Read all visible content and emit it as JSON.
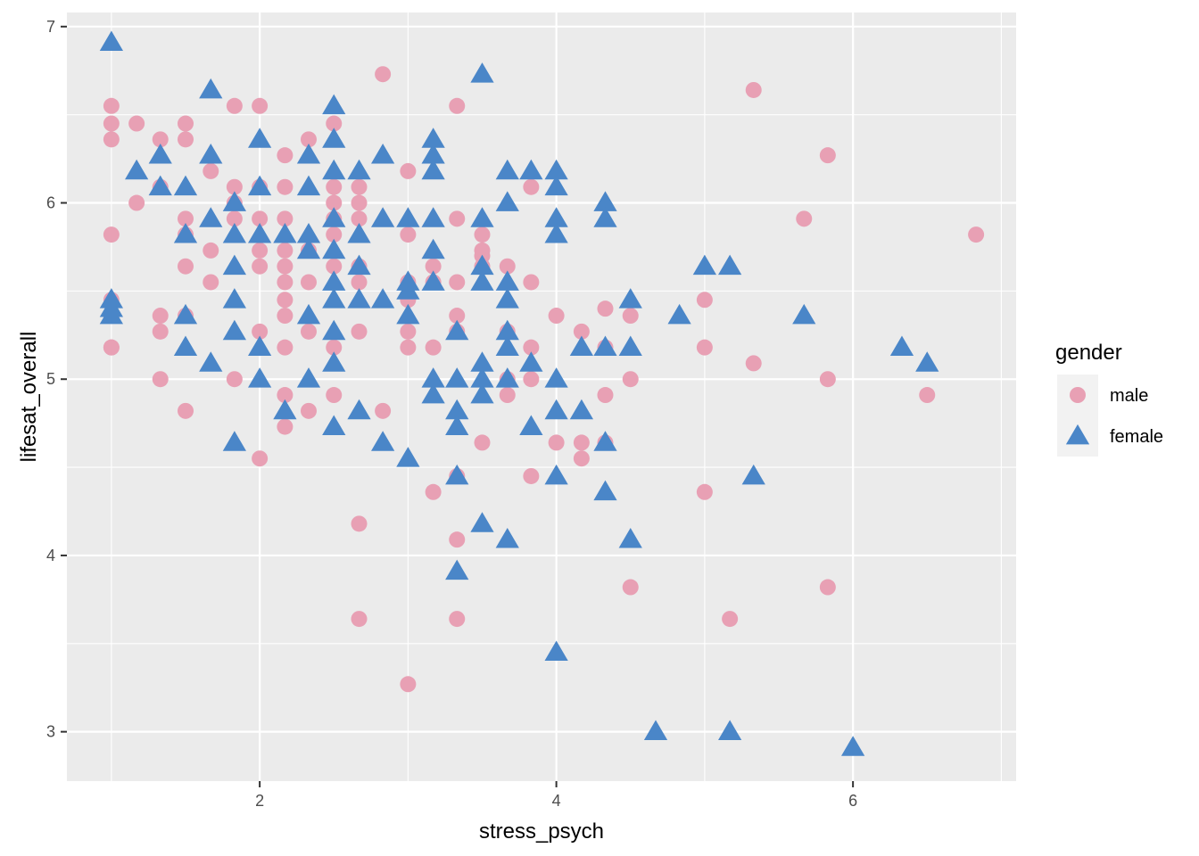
{
  "chart_data": {
    "type": "scatter",
    "title": "",
    "xlabel": "stress_psych",
    "ylabel": "lifesat_overall",
    "xlim": [
      0.7,
      7.1
    ],
    "ylim": [
      2.72,
      7.08
    ],
    "x_ticks": [
      2,
      4,
      6
    ],
    "y_ticks": [
      3,
      4,
      5,
      6,
      7
    ],
    "grid": true,
    "legend": {
      "title": "gender",
      "position": "right"
    },
    "series": [
      {
        "name": "male",
        "shape": "circle",
        "color": "#E8A0B4",
        "points": [
          [
            1.0,
            6.45
          ],
          [
            1.0,
            6.55
          ],
          [
            1.0,
            6.36
          ],
          [
            1.0,
            5.82
          ],
          [
            1.0,
            5.45
          ],
          [
            1.0,
            5.36
          ],
          [
            1.0,
            5.18
          ],
          [
            1.0,
            5.18
          ],
          [
            1.17,
            6.45
          ],
          [
            1.17,
            6.0
          ],
          [
            1.33,
            6.36
          ],
          [
            1.33,
            6.09
          ],
          [
            1.33,
            5.36
          ],
          [
            1.33,
            5.27
          ],
          [
            1.33,
            5.0
          ],
          [
            1.5,
            6.45
          ],
          [
            1.5,
            6.36
          ],
          [
            1.5,
            5.91
          ],
          [
            1.5,
            5.82
          ],
          [
            1.5,
            5.64
          ],
          [
            1.5,
            5.36
          ],
          [
            1.5,
            4.82
          ],
          [
            1.67,
            6.18
          ],
          [
            1.67,
            5.73
          ],
          [
            1.67,
            5.55
          ],
          [
            1.83,
            6.55
          ],
          [
            1.83,
            6.09
          ],
          [
            1.83,
            6.0
          ],
          [
            1.83,
            5.91
          ],
          [
            1.83,
            5.0
          ],
          [
            2.0,
            6.55
          ],
          [
            2.0,
            6.09
          ],
          [
            2.0,
            5.91
          ],
          [
            2.0,
            5.73
          ],
          [
            2.0,
            5.64
          ],
          [
            2.0,
            5.27
          ],
          [
            2.0,
            4.55
          ],
          [
            2.17,
            6.27
          ],
          [
            2.17,
            6.09
          ],
          [
            2.17,
            5.91
          ],
          [
            2.17,
            5.73
          ],
          [
            2.17,
            5.64
          ],
          [
            2.17,
            5.55
          ],
          [
            2.17,
            5.45
          ],
          [
            2.17,
            5.36
          ],
          [
            2.17,
            5.18
          ],
          [
            2.17,
            4.91
          ],
          [
            2.17,
            4.73
          ],
          [
            2.33,
            6.36
          ],
          [
            2.33,
            5.73
          ],
          [
            2.33,
            5.55
          ],
          [
            2.33,
            5.27
          ],
          [
            2.33,
            4.82
          ],
          [
            2.5,
            6.45
          ],
          [
            2.5,
            6.09
          ],
          [
            2.5,
            6.0
          ],
          [
            2.5,
            5.91
          ],
          [
            2.5,
            5.82
          ],
          [
            2.5,
            5.64
          ],
          [
            2.5,
            5.18
          ],
          [
            2.5,
            4.91
          ],
          [
            2.67,
            6.09
          ],
          [
            2.67,
            6.0
          ],
          [
            2.67,
            5.91
          ],
          [
            2.67,
            5.64
          ],
          [
            2.67,
            5.55
          ],
          [
            2.67,
            5.27
          ],
          [
            2.67,
            4.18
          ],
          [
            2.67,
            3.64
          ],
          [
            2.83,
            6.73
          ],
          [
            2.83,
            4.82
          ],
          [
            3.0,
            6.18
          ],
          [
            3.0,
            5.82
          ],
          [
            3.0,
            5.55
          ],
          [
            3.0,
            5.45
          ],
          [
            3.0,
            5.27
          ],
          [
            3.0,
            5.18
          ],
          [
            3.0,
            3.27
          ],
          [
            3.17,
            5.64
          ],
          [
            3.17,
            5.55
          ],
          [
            3.17,
            5.18
          ],
          [
            3.17,
            4.36
          ],
          [
            3.33,
            6.55
          ],
          [
            3.33,
            5.91
          ],
          [
            3.33,
            5.55
          ],
          [
            3.33,
            5.36
          ],
          [
            3.33,
            5.27
          ],
          [
            3.33,
            4.45
          ],
          [
            3.33,
            4.09
          ],
          [
            3.33,
            3.64
          ],
          [
            3.5,
            5.82
          ],
          [
            3.5,
            5.73
          ],
          [
            3.5,
            5.7
          ],
          [
            3.5,
            5.64
          ],
          [
            3.5,
            4.64
          ],
          [
            3.67,
            5.64
          ],
          [
            3.67,
            5.27
          ],
          [
            3.67,
            5.0
          ],
          [
            3.67,
            4.91
          ],
          [
            3.83,
            6.09
          ],
          [
            3.83,
            5.55
          ],
          [
            3.83,
            5.18
          ],
          [
            3.83,
            5.0
          ],
          [
            3.83,
            4.45
          ],
          [
            4.0,
            5.36
          ],
          [
            4.0,
            4.64
          ],
          [
            4.17,
            5.27
          ],
          [
            4.17,
            4.64
          ],
          [
            4.17,
            4.55
          ],
          [
            4.33,
            5.4
          ],
          [
            4.33,
            5.18
          ],
          [
            4.33,
            4.91
          ],
          [
            4.33,
            4.64
          ],
          [
            4.5,
            5.36
          ],
          [
            4.5,
            5.0
          ],
          [
            4.5,
            3.82
          ],
          [
            5.0,
            5.45
          ],
          [
            5.0,
            5.18
          ],
          [
            5.0,
            4.36
          ],
          [
            5.17,
            3.64
          ],
          [
            5.33,
            6.64
          ],
          [
            5.33,
            5.09
          ],
          [
            5.67,
            5.91
          ],
          [
            5.83,
            6.27
          ],
          [
            5.83,
            5.0
          ],
          [
            5.83,
            3.82
          ],
          [
            6.5,
            4.91
          ],
          [
            6.83,
            5.82
          ]
        ]
      },
      {
        "name": "female",
        "shape": "triangle",
        "color": "#4A86C8",
        "points": [
          [
            1.0,
            6.91
          ],
          [
            1.0,
            5.45
          ],
          [
            1.0,
            5.36
          ],
          [
            1.0,
            5.4
          ],
          [
            1.17,
            6.18
          ],
          [
            1.33,
            6.27
          ],
          [
            1.33,
            6.09
          ],
          [
            1.5,
            6.09
          ],
          [
            1.5,
            5.82
          ],
          [
            1.5,
            5.36
          ],
          [
            1.5,
            5.18
          ],
          [
            1.67,
            6.64
          ],
          [
            1.67,
            6.27
          ],
          [
            1.67,
            5.91
          ],
          [
            1.67,
            5.09
          ],
          [
            1.83,
            6.0
          ],
          [
            1.83,
            5.82
          ],
          [
            1.83,
            5.64
          ],
          [
            1.83,
            5.45
          ],
          [
            1.83,
            5.27
          ],
          [
            1.83,
            4.64
          ],
          [
            2.0,
            6.36
          ],
          [
            2.0,
            6.09
          ],
          [
            2.0,
            5.82
          ],
          [
            2.0,
            5.18
          ],
          [
            2.0,
            5.0
          ],
          [
            2.17,
            5.82
          ],
          [
            2.17,
            4.82
          ],
          [
            2.33,
            6.27
          ],
          [
            2.33,
            6.09
          ],
          [
            2.33,
            5.82
          ],
          [
            2.33,
            5.73
          ],
          [
            2.33,
            5.36
          ],
          [
            2.33,
            5.0
          ],
          [
            2.5,
            6.55
          ],
          [
            2.5,
            6.36
          ],
          [
            2.5,
            6.18
          ],
          [
            2.5,
            5.91
          ],
          [
            2.5,
            5.73
          ],
          [
            2.5,
            5.55
          ],
          [
            2.5,
            5.45
          ],
          [
            2.5,
            5.27
          ],
          [
            2.5,
            5.09
          ],
          [
            2.5,
            4.73
          ],
          [
            2.67,
            6.18
          ],
          [
            2.67,
            5.82
          ],
          [
            2.67,
            5.64
          ],
          [
            2.67,
            5.45
          ],
          [
            2.67,
            4.82
          ],
          [
            2.83,
            6.27
          ],
          [
            2.83,
            5.91
          ],
          [
            2.83,
            5.45
          ],
          [
            2.83,
            4.64
          ],
          [
            3.0,
            5.91
          ],
          [
            3.0,
            5.55
          ],
          [
            3.0,
            5.5
          ],
          [
            3.0,
            5.36
          ],
          [
            3.0,
            4.55
          ],
          [
            3.17,
            6.36
          ],
          [
            3.17,
            6.27
          ],
          [
            3.17,
            6.18
          ],
          [
            3.17,
            5.91
          ],
          [
            3.17,
            5.73
          ],
          [
            3.17,
            5.55
          ],
          [
            3.17,
            5.0
          ],
          [
            3.17,
            4.91
          ],
          [
            3.33,
            5.27
          ],
          [
            3.33,
            5.0
          ],
          [
            3.33,
            4.82
          ],
          [
            3.33,
            4.73
          ],
          [
            3.33,
            4.45
          ],
          [
            3.33,
            3.91
          ],
          [
            3.5,
            6.73
          ],
          [
            3.5,
            5.91
          ],
          [
            3.5,
            5.64
          ],
          [
            3.5,
            5.55
          ],
          [
            3.5,
            5.09
          ],
          [
            3.5,
            5.0
          ],
          [
            3.5,
            4.91
          ],
          [
            3.5,
            4.18
          ],
          [
            3.67,
            6.18
          ],
          [
            3.67,
            6.0
          ],
          [
            3.67,
            5.55
          ],
          [
            3.67,
            5.45
          ],
          [
            3.67,
            5.27
          ],
          [
            3.67,
            5.18
          ],
          [
            3.67,
            5.0
          ],
          [
            3.67,
            4.09
          ],
          [
            3.83,
            6.18
          ],
          [
            3.83,
            5.09
          ],
          [
            3.83,
            4.73
          ],
          [
            4.0,
            6.18
          ],
          [
            4.0,
            6.09
          ],
          [
            4.0,
            5.91
          ],
          [
            4.0,
            5.82
          ],
          [
            4.0,
            5.0
          ],
          [
            4.0,
            4.82
          ],
          [
            4.0,
            4.45
          ],
          [
            4.0,
            3.45
          ],
          [
            4.17,
            5.18
          ],
          [
            4.17,
            4.82
          ],
          [
            4.33,
            6.0
          ],
          [
            4.33,
            5.91
          ],
          [
            4.33,
            5.18
          ],
          [
            4.33,
            4.64
          ],
          [
            4.33,
            4.36
          ],
          [
            4.5,
            5.45
          ],
          [
            4.5,
            5.18
          ],
          [
            4.5,
            4.09
          ],
          [
            4.67,
            3.0
          ],
          [
            4.83,
            5.36
          ],
          [
            5.0,
            5.64
          ],
          [
            5.17,
            5.64
          ],
          [
            5.17,
            3.0
          ],
          [
            5.33,
            4.45
          ],
          [
            5.67,
            5.36
          ],
          [
            6.0,
            2.91
          ],
          [
            6.33,
            5.18
          ],
          [
            6.5,
            5.09
          ]
        ]
      }
    ]
  }
}
